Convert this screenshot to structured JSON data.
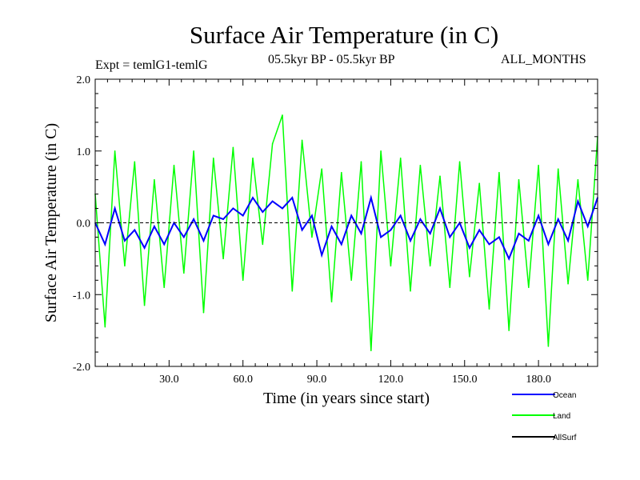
{
  "chart_data": {
    "type": "line",
    "title": "Surface Air Temperature (in C)",
    "subtitle_left": "Expt = temlG1-temlG",
    "subtitle_center": "05.5kyr BP - 05.5kyr BP",
    "subtitle_right": "ALL_MONTHS",
    "xlabel": "Time (in years since start)",
    "ylabel": "Surface Air Temperature (in C)",
    "xlim": [
      0,
      204
    ],
    "ylim": [
      -2.0,
      2.0
    ],
    "xticks": [
      30,
      60,
      90,
      120,
      150,
      180
    ],
    "xtick_labels": [
      "30.0",
      "60.0",
      "90.0",
      "120.0",
      "150.0",
      "180.0"
    ],
    "yticks": [
      2.0,
      1.0,
      0.0,
      -1.0,
      -2.0
    ],
    "ytick_labels": [
      "2.0",
      "1.0",
      "0.0",
      "-1.0",
      "-2.0"
    ],
    "zero_line": 0.0,
    "series": [
      {
        "name": "Land",
        "color": "#00ff00",
        "x": [
          0,
          4,
          8,
          12,
          16,
          20,
          24,
          28,
          32,
          36,
          40,
          44,
          48,
          52,
          56,
          60,
          64,
          68,
          72,
          76,
          80,
          84,
          88,
          92,
          96,
          100,
          104,
          108,
          112,
          116,
          120,
          124,
          128,
          132,
          136,
          140,
          144,
          148,
          152,
          156,
          160,
          164,
          168,
          172,
          176,
          180,
          184,
          188,
          192,
          196,
          200,
          204
        ],
        "values": [
          0.4,
          -1.45,
          1.0,
          -0.6,
          0.85,
          -1.15,
          0.6,
          -0.9,
          0.8,
          -0.7,
          1.0,
          -1.25,
          0.9,
          -0.5,
          1.05,
          -0.8,
          0.9,
          -0.3,
          1.1,
          1.5,
          -0.95,
          1.15,
          -0.2,
          0.75,
          -1.1,
          0.7,
          -0.8,
          0.85,
          -1.78,
          1.0,
          -0.6,
          0.9,
          -0.95,
          0.8,
          -0.6,
          0.65,
          -0.9,
          0.85,
          -0.75,
          0.55,
          -1.2,
          0.7,
          -1.5,
          0.6,
          -0.9,
          0.8,
          -1.72,
          0.75,
          -0.85,
          0.6,
          -0.8,
          1.2
        ]
      },
      {
        "name": "Ocean",
        "color": "#0000ff",
        "x": [
          0,
          4,
          8,
          12,
          16,
          20,
          24,
          28,
          32,
          36,
          40,
          44,
          48,
          52,
          56,
          60,
          64,
          68,
          72,
          76,
          80,
          84,
          88,
          92,
          96,
          100,
          104,
          108,
          112,
          116,
          120,
          124,
          128,
          132,
          136,
          140,
          144,
          148,
          152,
          156,
          160,
          164,
          168,
          172,
          176,
          180,
          184,
          188,
          192,
          196,
          200,
          204
        ],
        "values": [
          0.0,
          -0.3,
          0.2,
          -0.25,
          -0.1,
          -0.35,
          -0.05,
          -0.3,
          0.0,
          -0.2,
          0.05,
          -0.25,
          0.1,
          0.05,
          0.2,
          0.1,
          0.35,
          0.15,
          0.3,
          0.2,
          0.35,
          -0.1,
          0.1,
          -0.45,
          -0.05,
          -0.3,
          0.1,
          -0.15,
          0.35,
          -0.2,
          -0.1,
          0.1,
          -0.25,
          0.05,
          -0.15,
          0.2,
          -0.2,
          0.0,
          -0.35,
          -0.1,
          -0.3,
          -0.2,
          -0.5,
          -0.15,
          -0.25,
          0.1,
          -0.3,
          0.05,
          -0.25,
          0.3,
          -0.05,
          0.35
        ]
      },
      {
        "name": "AllSurf",
        "color": "#000000",
        "x": [],
        "values": []
      }
    ],
    "legend": {
      "position": "bottom-right",
      "entries": [
        "Ocean",
        "Land",
        "AllSurf"
      ]
    }
  }
}
